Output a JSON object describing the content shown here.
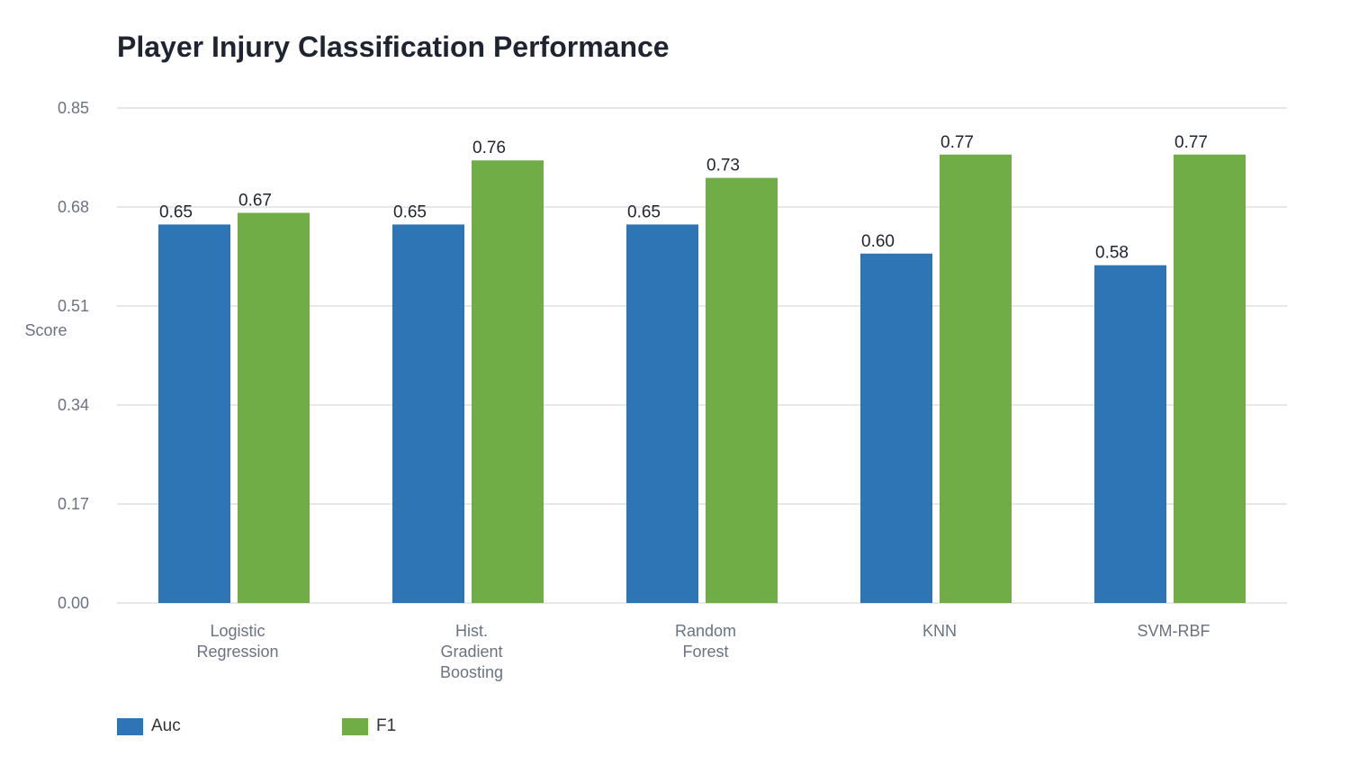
{
  "chart_data": {
    "type": "bar",
    "title": "Player Injury Classification Performance",
    "ylabel": "Score",
    "xlabel": "",
    "ylim": [
      0,
      0.85
    ],
    "yticks": [
      "0.00",
      "0.17",
      "0.34",
      "0.51",
      "0.68",
      "0.85"
    ],
    "grid": true,
    "legend_position": "bottom-left",
    "categories": [
      [
        "Logistic",
        "Regression"
      ],
      [
        "Hist.",
        "Gradient",
        "Boosting"
      ],
      [
        "Random",
        "Forest"
      ],
      [
        "KNN"
      ],
      [
        "SVM-RBF"
      ]
    ],
    "series": [
      {
        "name": "Auc",
        "color": "#2e75b6",
        "values": [
          0.65,
          0.65,
          0.65,
          0.6,
          0.58
        ],
        "labels": [
          "0.65",
          "0.65",
          "0.65",
          "0.60",
          "0.58"
        ]
      },
      {
        "name": "F1",
        "color": "#70ad47",
        "values": [
          0.67,
          0.76,
          0.73,
          0.77,
          0.77
        ],
        "labels": [
          "0.67",
          "0.76",
          "0.73",
          "0.77",
          "0.77"
        ]
      }
    ]
  },
  "colors": {
    "grid": "#e0e0e0",
    "tick_text": "#6b7280",
    "label_text": "#1f2530"
  }
}
